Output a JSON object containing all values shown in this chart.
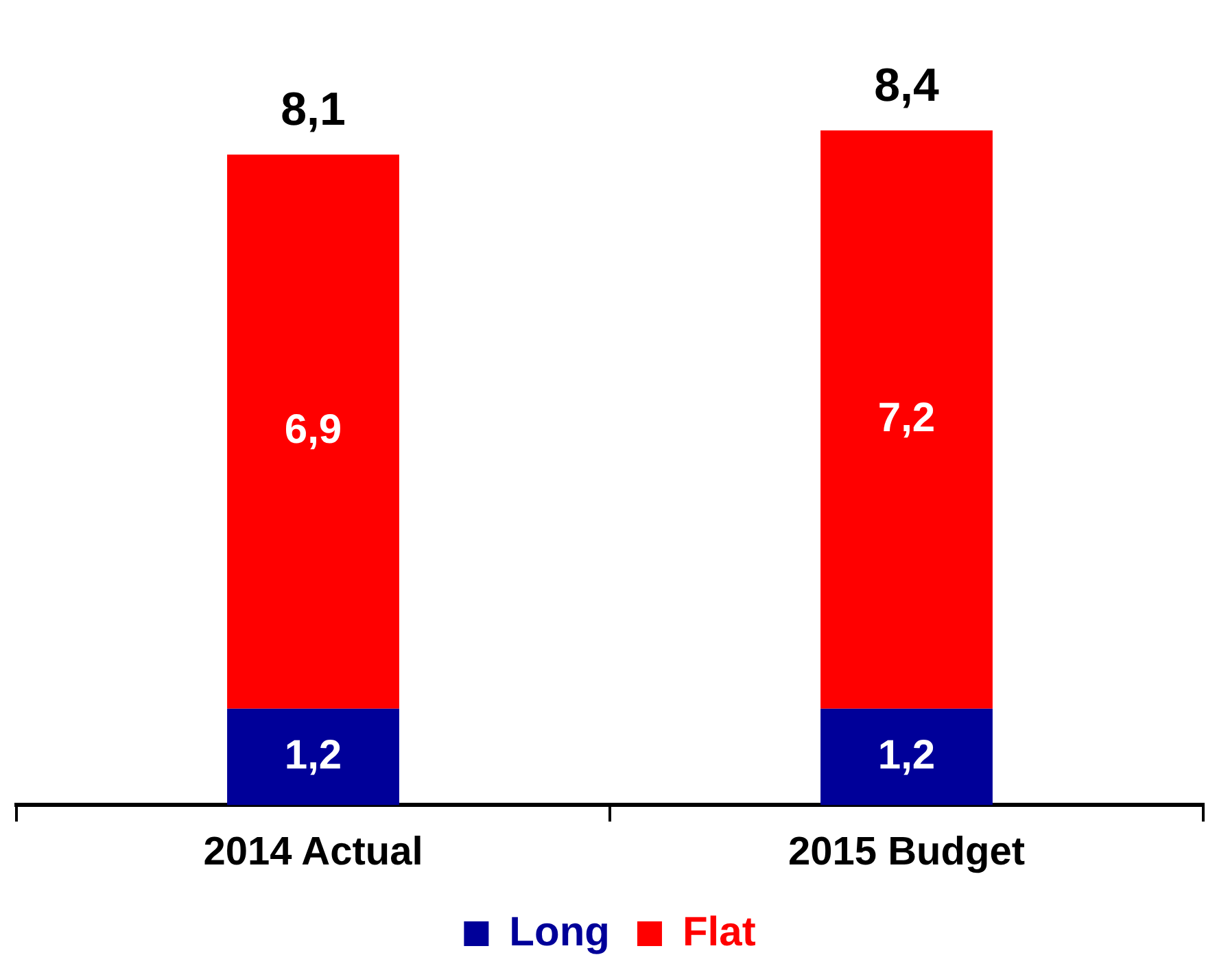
{
  "chart_data": {
    "type": "bar",
    "stacked": true,
    "categories": [
      "2014 Actual",
      "2015 Budget"
    ],
    "series": [
      {
        "name": "Long",
        "color": "#000099",
        "values": [
          1.2,
          1.2
        ],
        "value_labels": [
          "1,2",
          "1,2"
        ]
      },
      {
        "name": "Flat",
        "color": "#ff0000",
        "values": [
          6.9,
          7.2
        ],
        "value_labels": [
          "6,9",
          "7,2"
        ]
      }
    ],
    "totals": [
      "8,1",
      "8,4"
    ],
    "legend": "bottom",
    "grid": false
  }
}
